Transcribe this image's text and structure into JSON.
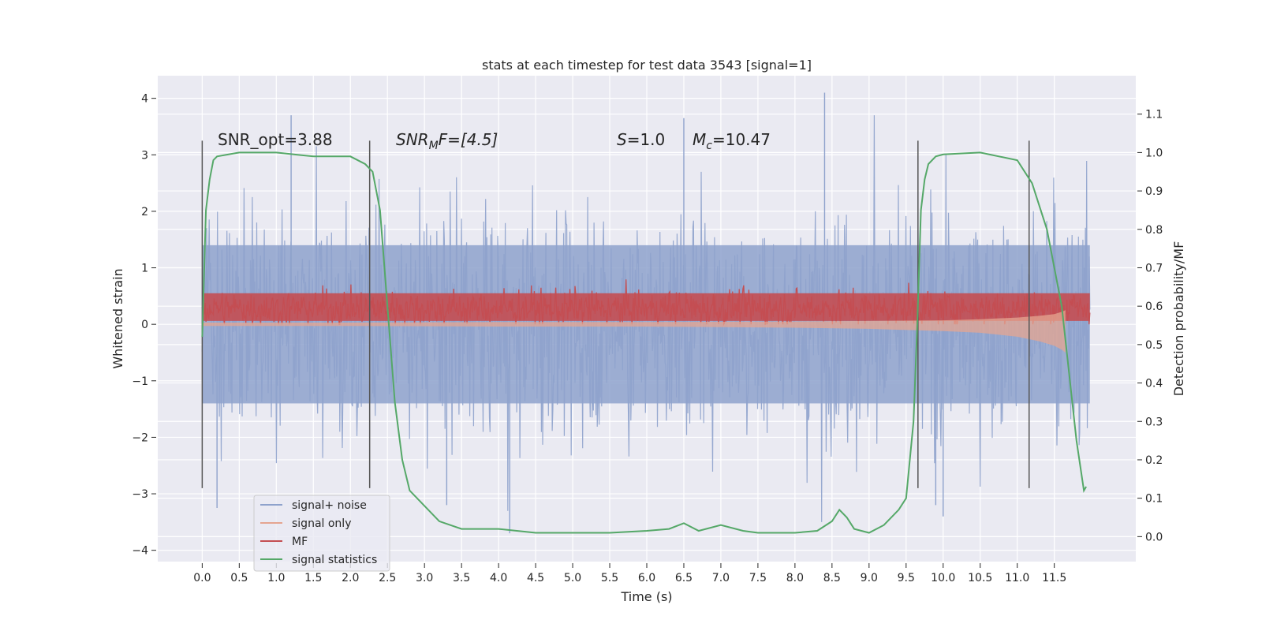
{
  "chart_data": {
    "type": "line",
    "title": "stats at each timestep for test data 3543 [signal=1]",
    "xlabel": "Time (s)",
    "ylabel": "Whitened strain",
    "y2label": "Detection probability/MF",
    "xlim": [
      -0.6,
      12.6
    ],
    "ylim": [
      -4.2,
      4.4
    ],
    "y2lim": [
      -0.065,
      1.2
    ],
    "x_ticks": [
      0.0,
      0.5,
      1.0,
      1.5,
      2.0,
      2.5,
      3.0,
      3.5,
      4.0,
      4.5,
      5.0,
      5.5,
      6.0,
      6.5,
      7.0,
      7.5,
      8.0,
      8.5,
      9.0,
      9.5,
      10.0,
      10.5,
      11.0,
      11.5
    ],
    "x_tick_labels": [
      "0.0",
      "0.5",
      "1.0",
      "1.5",
      "2.0",
      "2.5",
      "3.0",
      "3.5",
      "4.0",
      "4.5",
      "5.0",
      "5.5",
      "6.0",
      "6.5",
      "7.0",
      "7.5",
      "8.0",
      "8.5",
      "9.0",
      "9.5",
      "10.0",
      "10.5",
      "11.0",
      "11.5"
    ],
    "y_ticks": [
      -4,
      -3,
      -2,
      -1,
      0,
      1,
      2,
      3,
      4
    ],
    "y_tick_labels": [
      "−4",
      "−3",
      "−2",
      "−1",
      "0",
      "1",
      "2",
      "3",
      "4"
    ],
    "y2_ticks": [
      0.0,
      0.1,
      0.2,
      0.3,
      0.4,
      0.5,
      0.6,
      0.7,
      0.8,
      0.9,
      1.0,
      1.1
    ],
    "y2_tick_labels": [
      "0.0",
      "0.1",
      "0.2",
      "0.3",
      "0.4",
      "0.5",
      "0.6",
      "0.7",
      "0.8",
      "0.9",
      "1.0",
      "1.1"
    ],
    "grid": true,
    "legend_position": "bottom-left",
    "annotations": {
      "snr_opt": "SNR_opt=3.88",
      "snr_mf_base": "SNR",
      "snr_mf_sub": "M",
      "snr_mf_rest": "F=[4.5]",
      "s_base": "S",
      "s_rest": "=1.0",
      "mc_base": "M",
      "mc_sub": "c",
      "mc_rest": "=10.47"
    },
    "vertical_markers": [
      0.0,
      2.26,
      9.66,
      11.16
    ],
    "series": [
      {
        "name": "signal+ noise",
        "color": "#8ea2cc",
        "axis": "left",
        "note": "dense noisy time series",
        "x_range": [
          0.0,
          11.98
        ],
        "amplitude_core": 1.4,
        "amplitude_peaks": [
          -3.7,
          4.1
        ]
      },
      {
        "name": "signal only",
        "color": "#e5a590",
        "axis": "left",
        "x": [
          0.0,
          2.0,
          4.0,
          6.0,
          8.0,
          9.0,
          10.0,
          10.5,
          11.0,
          11.3,
          11.5,
          11.6,
          11.65
        ],
        "upper": [
          0.03,
          0.03,
          0.04,
          0.04,
          0.05,
          0.06,
          0.07,
          0.09,
          0.12,
          0.15,
          0.18,
          0.22,
          0.25
        ],
        "lower": [
          -0.03,
          -0.03,
          -0.04,
          -0.04,
          -0.06,
          -0.08,
          -0.12,
          -0.15,
          -0.22,
          -0.3,
          -0.38,
          -0.45,
          -0.5
        ]
      },
      {
        "name": "MF",
        "color": "#c44e52",
        "axis": "left",
        "x_range": [
          0.0,
          11.98
        ],
        "band": [
          0.0,
          0.85
        ]
      },
      {
        "name": "signal statistics",
        "color": "#55a868",
        "axis": "right",
        "x": [
          0.0,
          0.05,
          0.1,
          0.15,
          0.2,
          0.5,
          1.0,
          1.5,
          2.0,
          2.2,
          2.3,
          2.4,
          2.5,
          2.6,
          2.7,
          2.8,
          3.0,
          3.2,
          3.5,
          4.0,
          4.5,
          5.0,
          5.5,
          6.0,
          6.3,
          6.5,
          6.7,
          7.0,
          7.3,
          7.5,
          8.0,
          8.3,
          8.5,
          8.6,
          8.7,
          8.8,
          9.0,
          9.2,
          9.4,
          9.5,
          9.6,
          9.65,
          9.7,
          9.75,
          9.8,
          9.9,
          10.0,
          10.5,
          11.0,
          11.2,
          11.4,
          11.6,
          11.8,
          11.9,
          11.93
        ],
        "values": [
          0.52,
          0.85,
          0.93,
          0.98,
          0.99,
          1.0,
          1.0,
          0.99,
          0.99,
          0.97,
          0.95,
          0.85,
          0.6,
          0.35,
          0.2,
          0.12,
          0.08,
          0.04,
          0.02,
          0.02,
          0.01,
          0.01,
          0.01,
          0.015,
          0.02,
          0.035,
          0.015,
          0.03,
          0.015,
          0.01,
          0.01,
          0.015,
          0.04,
          0.07,
          0.05,
          0.02,
          0.01,
          0.03,
          0.07,
          0.1,
          0.3,
          0.55,
          0.85,
          0.93,
          0.97,
          0.99,
          0.995,
          1.0,
          0.98,
          0.92,
          0.8,
          0.6,
          0.25,
          0.12,
          0.13
        ]
      }
    ]
  }
}
